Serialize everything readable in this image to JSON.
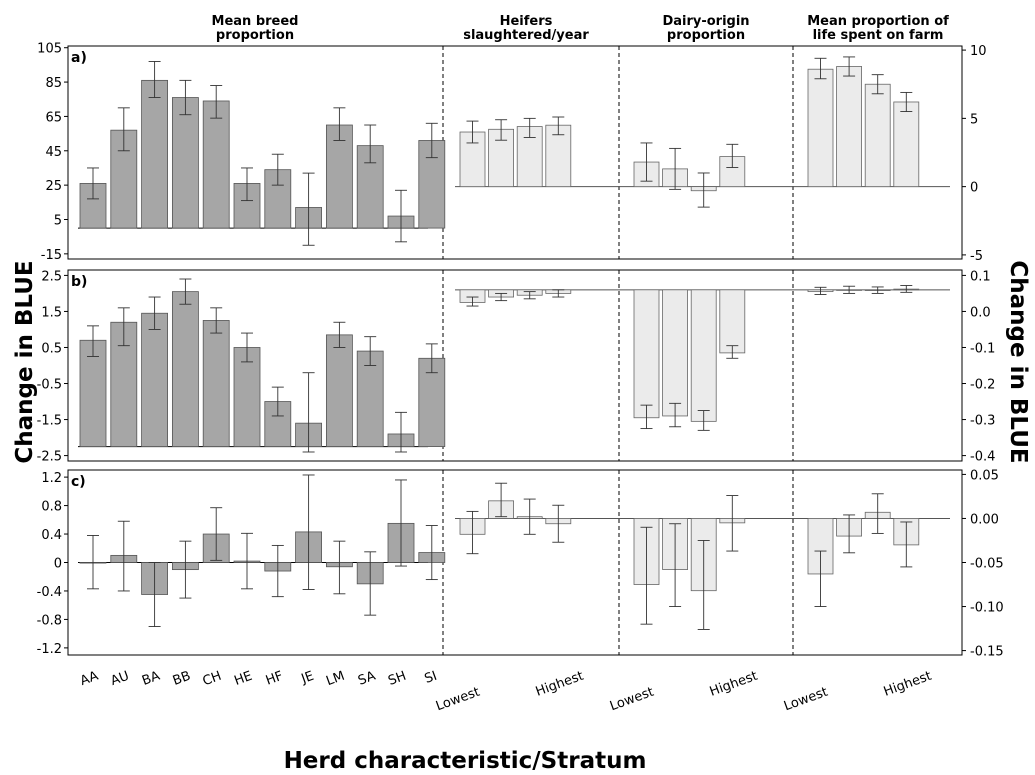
{
  "chart_data": {
    "type": "bar",
    "headers": [
      "Mean breed\nproportion",
      "Heifers\nslaughtered/year",
      "Dairy-origin\nproportion",
      "Mean proportion of\nlife spent on farm"
    ],
    "breeds": [
      "AA",
      "AU",
      "BA",
      "BB",
      "CH",
      "HE",
      "HF",
      "JE",
      "LM",
      "SA",
      "SH",
      "SI"
    ],
    "strata": [
      "Lowest",
      "Highest"
    ],
    "ylabel_left": "Change in BLUE",
    "ylabel_right": "Change in BLUE",
    "xlabel": "Herd characteristic/Stratum",
    "colors": {
      "breed_bar": "#a6a6a6",
      "stratum_bar": "#ebebeb",
      "edge": "#555555"
    },
    "panels": [
      {
        "label": "a)",
        "left_axis": {
          "ylim": [
            -18,
            106
          ],
          "ticks": [
            105,
            85,
            65,
            45,
            25,
            5,
            -15
          ]
        },
        "right_axis": {
          "ylim": [
            -5.3,
            10.3
          ],
          "ticks": [
            10,
            5,
            0,
            -5
          ]
        },
        "breed": {
          "values": [
            26,
            57,
            86,
            76,
            74,
            26,
            34,
            12,
            60,
            48,
            7,
            51
          ],
          "err": [
            [
              17,
              35
            ],
            [
              45,
              70
            ],
            [
              76,
              97
            ],
            [
              66,
              86
            ],
            [
              64,
              83
            ],
            [
              16,
              35
            ],
            [
              25,
              43
            ],
            [
              -10,
              32
            ],
            [
              51,
              70
            ],
            [
              38,
              60
            ],
            [
              -8,
              22
            ],
            [
              41,
              61
            ]
          ]
        },
        "strata": [
          {
            "values": [
              4.0,
              4.2,
              4.4,
              4.5
            ],
            "err": [
              [
                3.2,
                4.8
              ],
              [
                3.4,
                4.9
              ],
              [
                3.6,
                5.0
              ],
              [
                3.8,
                5.1
              ]
            ]
          },
          {
            "values": [
              1.8,
              1.3,
              -0.3,
              2.2
            ],
            "err": [
              [
                0.4,
                3.2
              ],
              [
                -0.2,
                2.8
              ],
              [
                -1.5,
                1.0
              ],
              [
                1.4,
                3.1
              ]
            ]
          },
          {
            "values": [
              8.6,
              8.8,
              7.5,
              6.2
            ],
            "err": [
              [
                7.9,
                9.4
              ],
              [
                8.1,
                9.5
              ],
              [
                6.8,
                8.2
              ],
              [
                5.5,
                6.9
              ]
            ]
          }
        ]
      },
      {
        "label": "b)",
        "left_axis": {
          "ylim": [
            -2.65,
            2.65
          ],
          "ticks": [
            2.5,
            1.5,
            0.5,
            -0.5,
            -1.5,
            -2.5
          ]
        },
        "right_axis": {
          "ylim": [
            -0.415,
            0.115
          ],
          "ticks": [
            0.1,
            0.0,
            -0.1,
            -0.2,
            -0.3,
            -0.4
          ]
        },
        "breed": {
          "values": [
            0.7,
            1.2,
            1.45,
            2.05,
            1.25,
            0.5,
            -1.0,
            -1.6,
            0.85,
            0.4,
            -1.9,
            0.2
          ],
          "err": [
            [
              0.25,
              1.1
            ],
            [
              0.55,
              1.6
            ],
            [
              1.0,
              1.9
            ],
            [
              1.7,
              2.4
            ],
            [
              0.9,
              1.6
            ],
            [
              0.1,
              0.9
            ],
            [
              -1.4,
              -0.6
            ],
            [
              -2.4,
              -0.2
            ],
            [
              0.5,
              1.2
            ],
            [
              0.0,
              0.8
            ],
            [
              -2.4,
              -1.3
            ],
            [
              -0.2,
              0.6
            ]
          ]
        },
        "strata": [
          {
            "values": [
              0.025,
              0.04,
              0.045,
              0.05
            ],
            "err": [
              [
                0.015,
                0.04
              ],
              [
                0.03,
                0.05
              ],
              [
                0.035,
                0.055
              ],
              [
                0.04,
                0.06
              ]
            ]
          },
          {
            "values": [
              -0.295,
              -0.29,
              -0.305,
              -0.115
            ],
            "err": [
              [
                -0.325,
                -0.26
              ],
              [
                -0.32,
                -0.255
              ],
              [
                -0.33,
                -0.275
              ],
              [
                -0.13,
                -0.095
              ]
            ]
          },
          {
            "values": [
              0.055,
              0.06,
              0.058,
              0.062
            ],
            "err": [
              [
                0.047,
                0.067
              ],
              [
                0.05,
                0.07
              ],
              [
                0.05,
                0.068
              ],
              [
                0.053,
                0.072
              ]
            ]
          }
        ]
      },
      {
        "label": "c)",
        "left_axis": {
          "ylim": [
            -1.3,
            1.3
          ],
          "ticks": [
            1.2,
            0.8,
            0.4,
            0.0,
            -0.4,
            -0.8,
            -1.2
          ]
        },
        "right_axis": {
          "ylim": [
            -0.155,
            0.055
          ],
          "ticks": [
            0.05,
            0.0,
            -0.05,
            -0.1,
            -0.15
          ]
        },
        "breed": {
          "values": [
            0.0,
            0.1,
            -0.45,
            -0.1,
            0.4,
            0.02,
            -0.12,
            0.43,
            -0.06,
            -0.3,
            0.55,
            0.14
          ],
          "err": [
            [
              -0.37,
              0.38
            ],
            [
              -0.4,
              0.58
            ],
            [
              -0.9,
              0.0
            ],
            [
              -0.5,
              0.3
            ],
            [
              0.03,
              0.77
            ],
            [
              -0.37,
              0.41
            ],
            [
              -0.48,
              0.24
            ],
            [
              -0.38,
              1.23
            ],
            [
              -0.44,
              0.3
            ],
            [
              -0.74,
              0.15
            ],
            [
              -0.05,
              1.16
            ],
            [
              -0.24,
              0.52
            ]
          ]
        },
        "strata": [
          {
            "values": [
              -0.018,
              0.02,
              0.002,
              -0.006
            ],
            "err": [
              [
                -0.04,
                0.008
              ],
              [
                0.002,
                0.04
              ],
              [
                -0.018,
                0.022
              ],
              [
                -0.027,
                0.015
              ]
            ]
          },
          {
            "values": [
              -0.075,
              -0.058,
              -0.082,
              -0.005
            ],
            "err": [
              [
                -0.12,
                -0.01
              ],
              [
                -0.1,
                -0.006
              ],
              [
                -0.126,
                -0.025
              ],
              [
                -0.037,
                0.026
              ]
            ]
          },
          {
            "values": [
              -0.063,
              -0.02,
              0.007,
              -0.03
            ],
            "err": [
              [
                -0.1,
                -0.037
              ],
              [
                -0.039,
                0.004
              ],
              [
                -0.017,
                0.028
              ],
              [
                -0.055,
                -0.004
              ]
            ]
          }
        ]
      }
    ]
  }
}
